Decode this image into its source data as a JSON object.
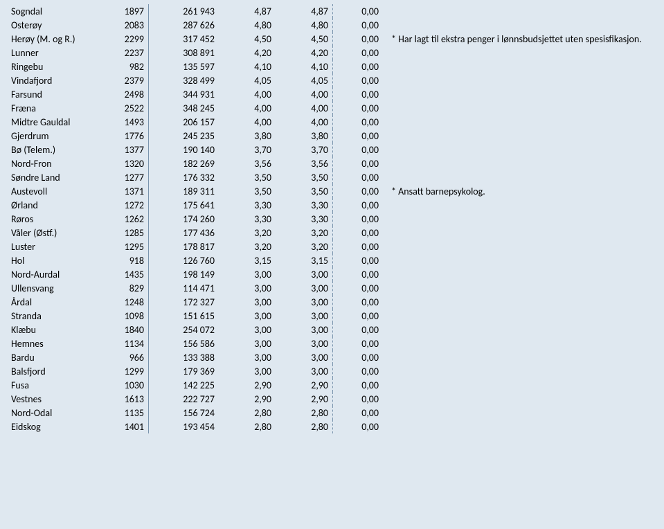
{
  "background_color": "#dfe8f0",
  "text_color": "#000000",
  "font_family": "Calibri, Arial, sans-serif",
  "font_size_pt": 11,
  "solid_divider_color": "#7a94ad",
  "dashed_divider_color": "#7a94ad",
  "number_format": {
    "thousand_sep": " ",
    "decimal_sep": ","
  },
  "columns": [
    "name",
    "value_a",
    "value_b",
    "value_c",
    "value_d",
    "value_e",
    "note"
  ],
  "rows": [
    {
      "name": "Sogndal",
      "a": "1897",
      "b": "261 943",
      "c": "4,87",
      "d": "4,87",
      "e": "0,00",
      "note": ""
    },
    {
      "name": "Osterøy",
      "a": "2083",
      "b": "287 626",
      "c": "4,80",
      "d": "4,80",
      "e": "0,00",
      "note": ""
    },
    {
      "name": "Herøy (M. og R.)",
      "a": "2299",
      "b": "317 452",
      "c": "4,50",
      "d": "4,50",
      "e": "0,00",
      "note": "* Har lagt til ekstra penger i lønnsbudsjettet uten spesisfikasjon."
    },
    {
      "name": "Lunner",
      "a": "2237",
      "b": "308 891",
      "c": "4,20",
      "d": "4,20",
      "e": "0,00",
      "note": ""
    },
    {
      "name": "Ringebu",
      "a": "982",
      "b": "135 597",
      "c": "4,10",
      "d": "4,10",
      "e": "0,00",
      "note": ""
    },
    {
      "name": "Vindafjord",
      "a": "2379",
      "b": "328 499",
      "c": "4,05",
      "d": "4,05",
      "e": "0,00",
      "note": ""
    },
    {
      "name": "Farsund",
      "a": "2498",
      "b": "344 931",
      "c": "4,00",
      "d": "4,00",
      "e": "0,00",
      "note": ""
    },
    {
      "name": "Fræna",
      "a": "2522",
      "b": "348 245",
      "c": "4,00",
      "d": "4,00",
      "e": "0,00",
      "note": ""
    },
    {
      "name": "Midtre Gauldal",
      "a": "1493",
      "b": "206 157",
      "c": "4,00",
      "d": "4,00",
      "e": "0,00",
      "note": ""
    },
    {
      "name": "Gjerdrum",
      "a": "1776",
      "b": "245 235",
      "c": "3,80",
      "d": "3,80",
      "e": "0,00",
      "note": ""
    },
    {
      "name": "Bø (Telem.)",
      "a": "1377",
      "b": "190 140",
      "c": "3,70",
      "d": "3,70",
      "e": "0,00",
      "note": ""
    },
    {
      "name": "Nord-Fron",
      "a": "1320",
      "b": "182 269",
      "c": "3,56",
      "d": "3,56",
      "e": "0,00",
      "note": ""
    },
    {
      "name": "Søndre Land",
      "a": "1277",
      "b": "176 332",
      "c": "3,50",
      "d": "3,50",
      "e": "0,00",
      "note": ""
    },
    {
      "name": "Austevoll",
      "a": "1371",
      "b": "189 311",
      "c": "3,50",
      "d": "3,50",
      "e": "0,00",
      "note": "* Ansatt barnepsykolog."
    },
    {
      "name": "Ørland",
      "a": "1272",
      "b": "175 641",
      "c": "3,30",
      "d": "3,30",
      "e": "0,00",
      "note": ""
    },
    {
      "name": "Røros",
      "a": "1262",
      "b": "174 260",
      "c": "3,30",
      "d": "3,30",
      "e": "0,00",
      "note": ""
    },
    {
      "name": "Våler (Østf.)",
      "a": "1285",
      "b": "177 436",
      "c": "3,20",
      "d": "3,20",
      "e": "0,00",
      "note": ""
    },
    {
      "name": "Luster",
      "a": "1295",
      "b": "178 817",
      "c": "3,20",
      "d": "3,20",
      "e": "0,00",
      "note": ""
    },
    {
      "name": "Hol",
      "a": "918",
      "b": "126 760",
      "c": "3,15",
      "d": "3,15",
      "e": "0,00",
      "note": ""
    },
    {
      "name": "Nord-Aurdal",
      "a": "1435",
      "b": "198 149",
      "c": "3,00",
      "d": "3,00",
      "e": "0,00",
      "note": ""
    },
    {
      "name": "Ullensvang",
      "a": "829",
      "b": "114 471",
      "c": "3,00",
      "d": "3,00",
      "e": "0,00",
      "note": ""
    },
    {
      "name": "Årdal",
      "a": "1248",
      "b": "172 327",
      "c": "3,00",
      "d": "3,00",
      "e": "0,00",
      "note": ""
    },
    {
      "name": "Stranda",
      "a": "1098",
      "b": "151 615",
      "c": "3,00",
      "d": "3,00",
      "e": "0,00",
      "note": ""
    },
    {
      "name": "Klæbu",
      "a": "1840",
      "b": "254 072",
      "c": "3,00",
      "d": "3,00",
      "e": "0,00",
      "note": ""
    },
    {
      "name": "Hemnes",
      "a": "1134",
      "b": "156 586",
      "c": "3,00",
      "d": "3,00",
      "e": "0,00",
      "note": ""
    },
    {
      "name": "Bardu",
      "a": "966",
      "b": "133 388",
      "c": "3,00",
      "d": "3,00",
      "e": "0,00",
      "note": ""
    },
    {
      "name": "Balsfjord",
      "a": "1299",
      "b": "179 369",
      "c": "3,00",
      "d": "3,00",
      "e": "0,00",
      "note": ""
    },
    {
      "name": "Fusa",
      "a": "1030",
      "b": "142 225",
      "c": "2,90",
      "d": "2,90",
      "e": "0,00",
      "note": ""
    },
    {
      "name": "Vestnes",
      "a": "1613",
      "b": "222 727",
      "c": "2,90",
      "d": "2,90",
      "e": "0,00",
      "note": ""
    },
    {
      "name": "Nord-Odal",
      "a": "1135",
      "b": "156 724",
      "c": "2,80",
      "d": "2,80",
      "e": "0,00",
      "note": ""
    },
    {
      "name": "Eidskog",
      "a": "1401",
      "b": "193 454",
      "c": "2,80",
      "d": "2,80",
      "e": "0,00",
      "note": ""
    }
  ]
}
